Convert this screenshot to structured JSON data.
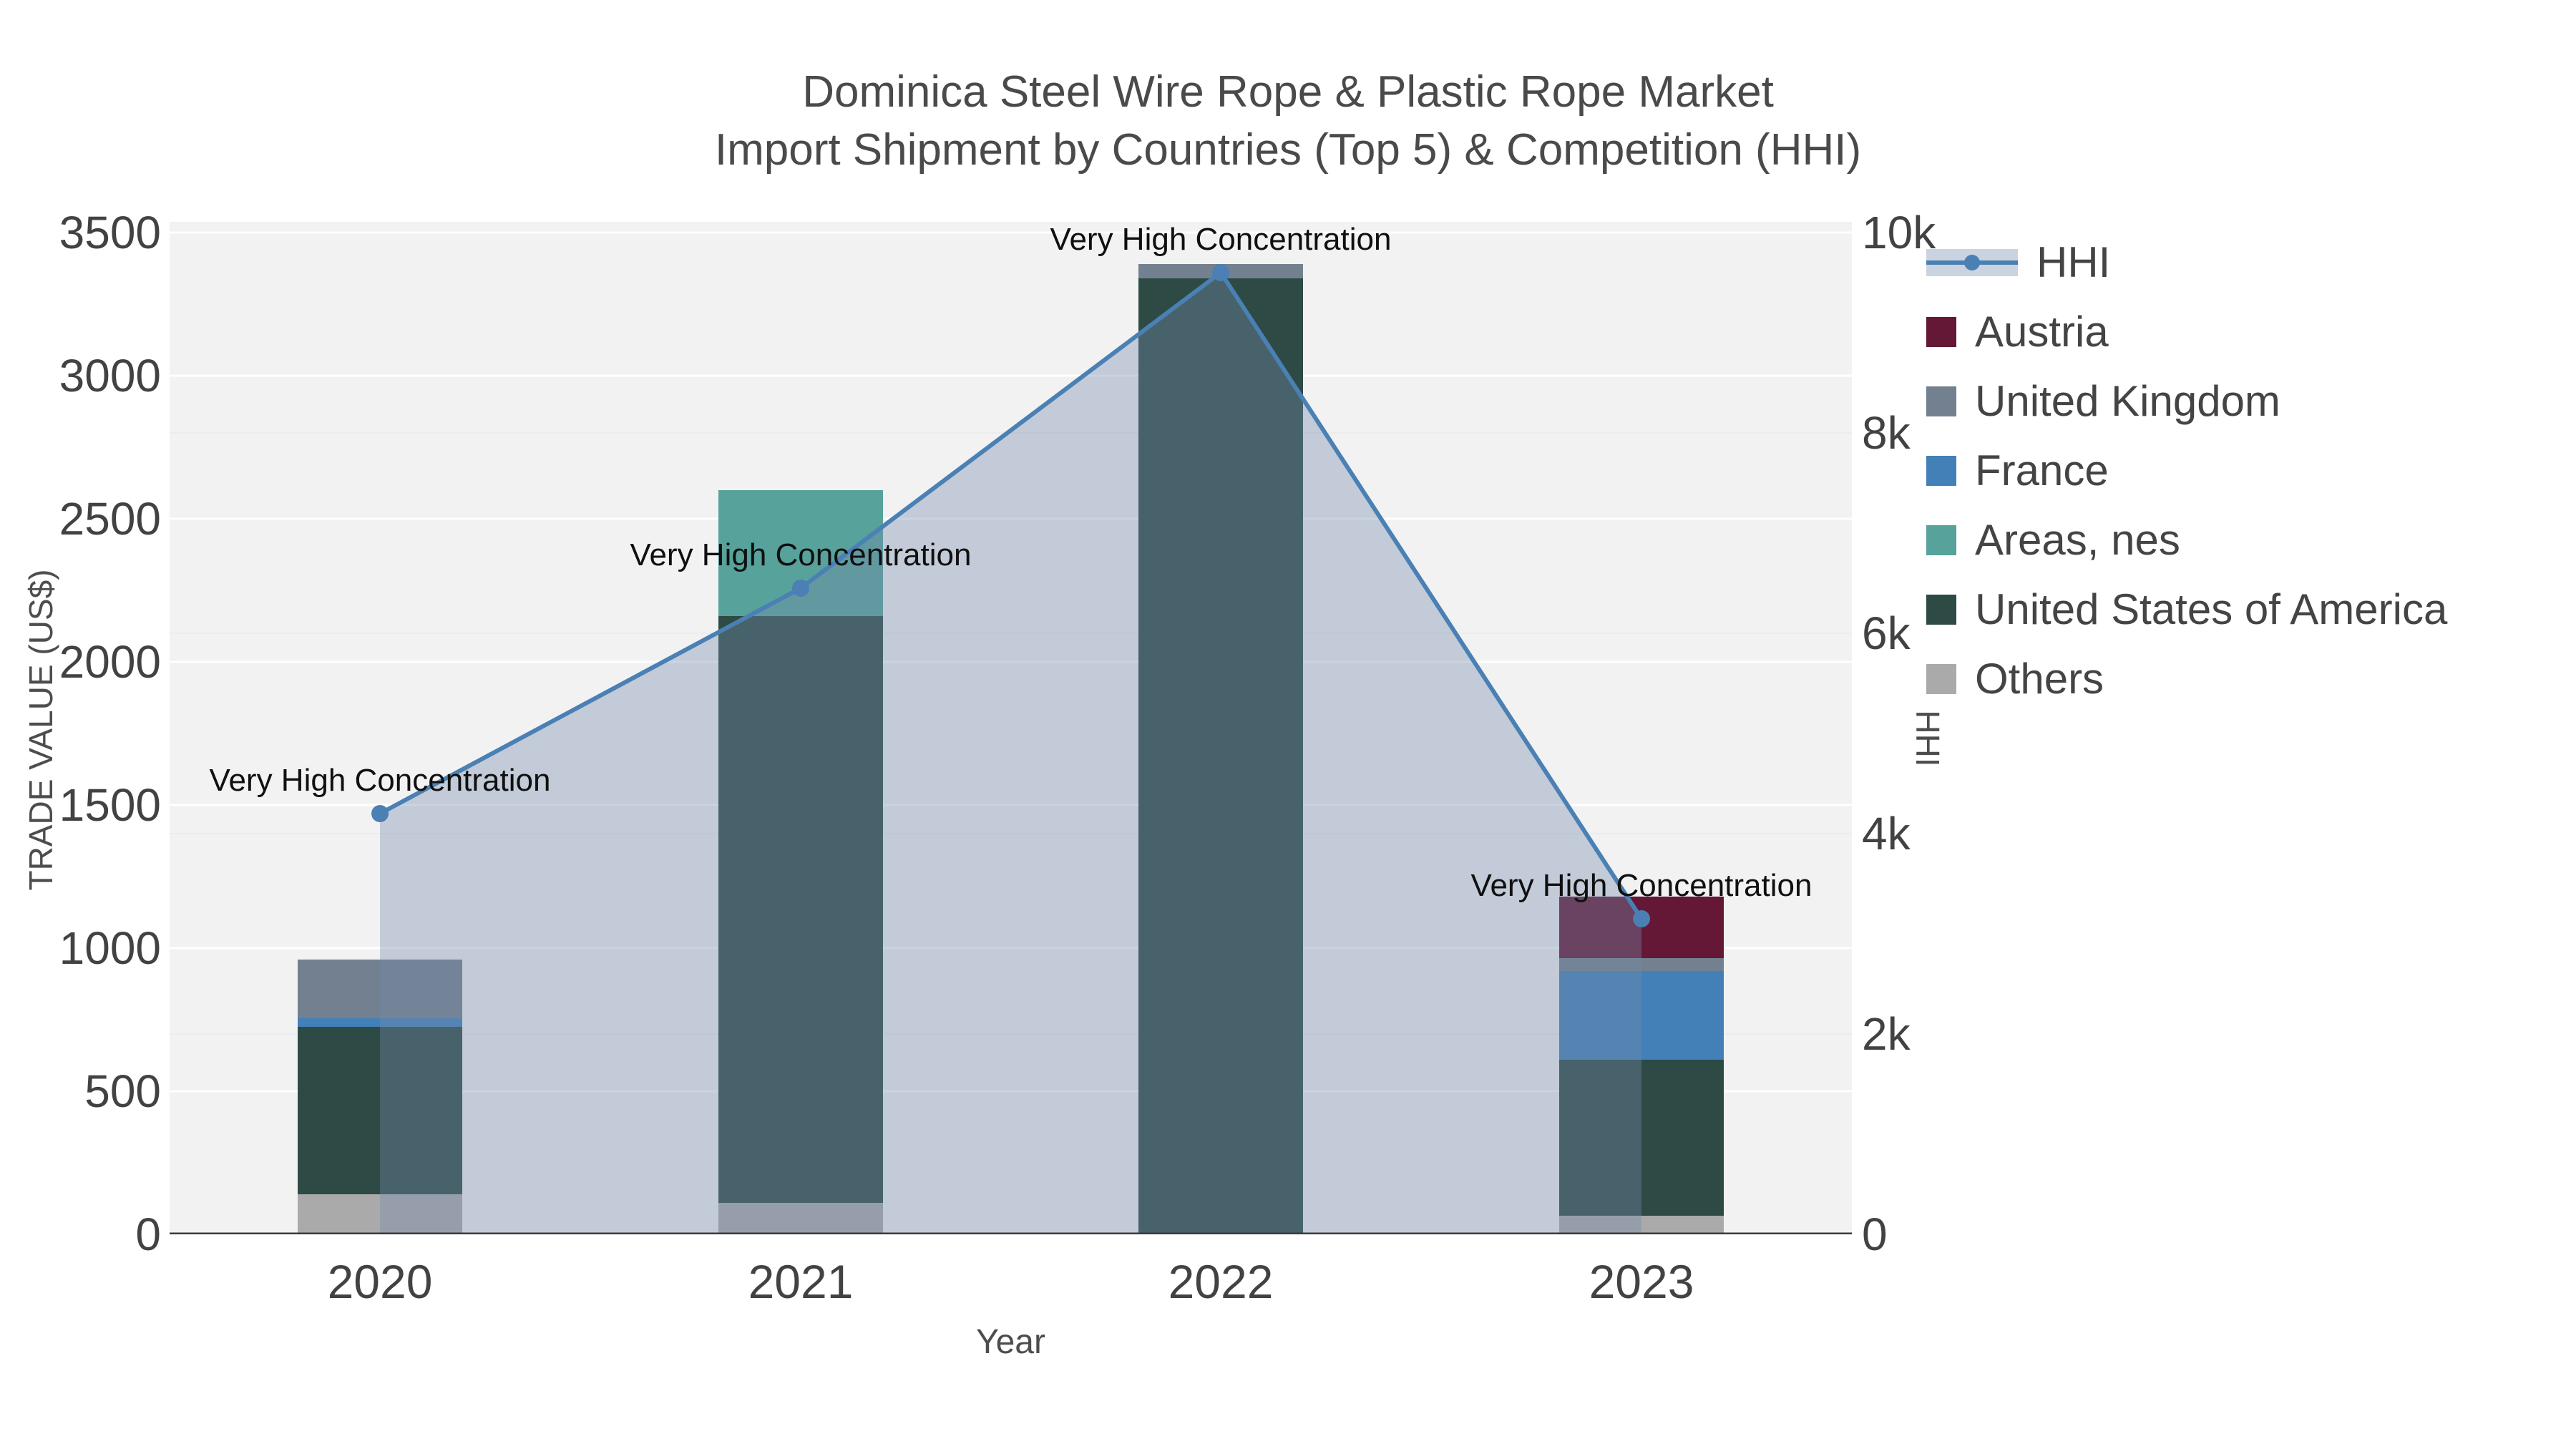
{
  "title": {
    "line1": "Dominica Steel Wire Rope & Plastic Rope Market",
    "line2": "Import Shipment by Countries (Top 5) & Competition (HHI)"
  },
  "axes": {
    "left": {
      "title": "TRADE VALUE (US$)",
      "ticks": [
        0,
        500,
        1000,
        1500,
        2000,
        2500,
        3000,
        3500
      ],
      "tick_labels": [
        "0",
        "500",
        "1000",
        "1500",
        "2000",
        "2500",
        "3000",
        "3500"
      ],
      "range": [
        0,
        3537
      ]
    },
    "right": {
      "title": "HHI",
      "ticks": [
        0,
        2000,
        4000,
        6000,
        8000,
        10000
      ],
      "tick_labels": [
        "0",
        "2k",
        "4k",
        "6k",
        "8k",
        "10k"
      ],
      "range": [
        0,
        10107
      ]
    },
    "x": {
      "title": "Year",
      "categories": [
        "2020",
        "2021",
        "2022",
        "2023"
      ]
    }
  },
  "annotation_text": "Very High Concentration",
  "chart_data": {
    "type": "bar+line",
    "title": "Dominica Steel Wire Rope & Plastic Rope Market — Import Shipment by Countries (Top 5) & Competition (HHI)",
    "categories": [
      "2020",
      "2021",
      "2022",
      "2023"
    ],
    "stacked": true,
    "stack_order_bottom_to_top": [
      "Others",
      "United States of America",
      "Areas, nes",
      "France",
      "United Kingdom",
      "Austria"
    ],
    "series": [
      {
        "name": "Austria",
        "values": [
          0,
          0,
          0,
          215
        ]
      },
      {
        "name": "United Kingdom",
        "values": [
          205,
          0,
          50,
          45
        ]
      },
      {
        "name": "France",
        "values": [
          30,
          0,
          0,
          310
        ]
      },
      {
        "name": "Areas, nes",
        "values": [
          0,
          440,
          0,
          0
        ]
      },
      {
        "name": "United States of America",
        "values": [
          585,
          2050,
          3340,
          545
        ]
      },
      {
        "name": "Others",
        "values": [
          140,
          110,
          0,
          65
        ]
      }
    ],
    "bar_totals": [
      960,
      2600,
      3390,
      1180
    ],
    "line_series": {
      "name": "HHI",
      "axis": "right",
      "fill": "tozeroy",
      "values": [
        4200,
        6450,
        9600,
        3150
      ],
      "point_annotations": [
        "Very High Concentration",
        "Very High Concentration",
        "Very High Concentration",
        "Very High Concentration"
      ]
    },
    "xlabel": "Year",
    "ylabel_left": "TRADE VALUE (US$)",
    "ylabel_right": "HHI",
    "grid": true,
    "legend_position": "right"
  },
  "legend": {
    "items": [
      {
        "label": "HHI",
        "type": "line",
        "color": "#4a80b4"
      },
      {
        "label": "Austria",
        "type": "bar",
        "color": "#641836"
      },
      {
        "label": "United Kingdom",
        "type": "bar",
        "color": "#73808f"
      },
      {
        "label": "France",
        "type": "bar",
        "color": "#4380b8"
      },
      {
        "label": "Areas, nes",
        "type": "bar",
        "color": "#57a29b"
      },
      {
        "label": "United States of America",
        "type": "bar",
        "color": "#2d4a45"
      },
      {
        "label": "Others",
        "type": "bar",
        "color": "#aaaaaa"
      }
    ]
  },
  "colors": {
    "Austria": "#641836",
    "United Kingdom": "#73808f",
    "France": "#4380b8",
    "Areas, nes": "#57a29b",
    "United States of America": "#2d4a45",
    "Others": "#aaaaaa",
    "hhi_line": "#4a80b4",
    "area_fill": "rgba(115,140,170,0.38)",
    "plot_background": "#f2f2f2",
    "gridline": "#ffffff",
    "axis_line": "#3b3b3b",
    "tick_text": "#424242",
    "title_text": "#4a4a4a",
    "annotation_text": "#101010"
  }
}
